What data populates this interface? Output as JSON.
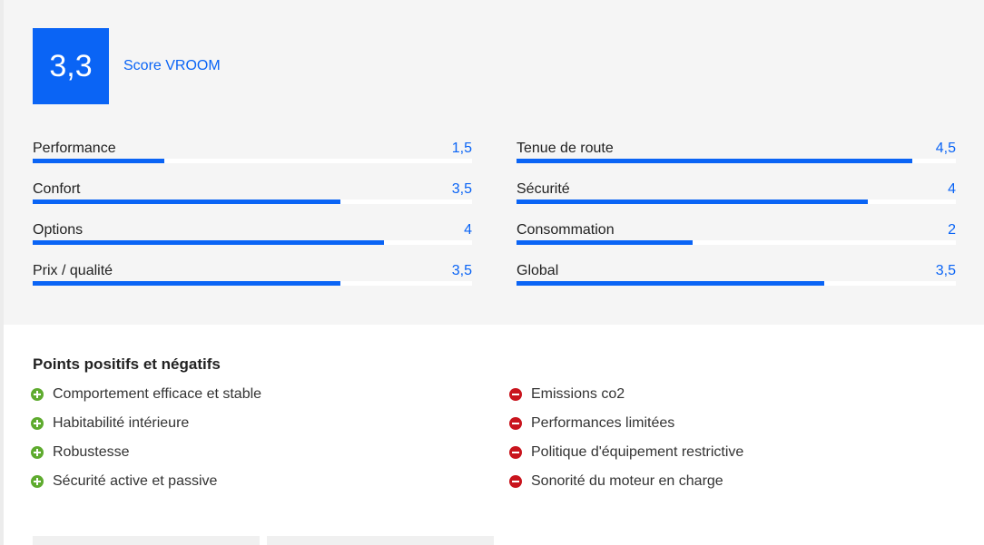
{
  "score": {
    "value": "3,3",
    "label": "Score VROOM"
  },
  "ratings": {
    "left": [
      {
        "name": "Performance",
        "value": "1,5",
        "fraction": 0.3
      },
      {
        "name": "Confort",
        "value": "3,5",
        "fraction": 0.7
      },
      {
        "name": "Options",
        "value": "4",
        "fraction": 0.8
      },
      {
        "name": "Prix / qualité",
        "value": "3,5",
        "fraction": 0.7
      }
    ],
    "right": [
      {
        "name": "Tenue de route",
        "value": "4,5",
        "fraction": 0.9
      },
      {
        "name": "Sécurité",
        "value": "4",
        "fraction": 0.8
      },
      {
        "name": "Consommation",
        "value": "2",
        "fraction": 0.4
      },
      {
        "name": "Global",
        "value": "3,5",
        "fraction": 0.7
      }
    ]
  },
  "points": {
    "title": "Points positifs et négatifs",
    "positive": [
      "Comportement efficace et stable",
      "Habitabilité intérieure",
      "Robustesse",
      "Sécurité active et passive"
    ],
    "negative": [
      "Emissions co2",
      "Performances limitées",
      "Politique d'équipement restrictive",
      "Sonorité du moteur en charge"
    ]
  },
  "colors": {
    "accent": "#0a64f5",
    "positive": "#5eab2e",
    "negative": "#c9141d"
  },
  "icons": {
    "positive": "plus-circle-icon",
    "negative": "minus-circle-icon"
  }
}
